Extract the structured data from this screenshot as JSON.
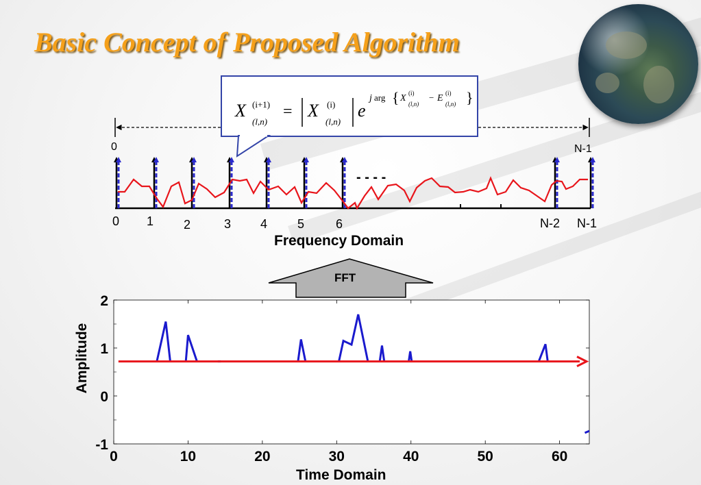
{
  "title": "Basic Concept of Proposed Algorithm",
  "formula": {
    "lhs_sym": "X",
    "lhs_sup": "(i+1)",
    "lhs_sub": "(l,n)",
    "eq": "=",
    "mag_sym": "X",
    "mag_sup": "(i)",
    "mag_sub": "(l,n)",
    "exp_base": "e",
    "exp_j": "j",
    "exp_arg": "arg",
    "exp_x": "X",
    "exp_x_sup": "(i)",
    "exp_x_sub": "(l,n)",
    "exp_minus": "−",
    "exp_e": "E",
    "exp_e_sup": "(i)",
    "exp_e_sub": "(l,n)"
  },
  "frequency": {
    "range_start": "0",
    "range_end": "N-1",
    "ellipsis": "- - - -",
    "axis_labels": [
      "0",
      "1",
      "2",
      "3",
      "4",
      "5",
      "6",
      "N-2",
      "N-1"
    ],
    "domain_label": "Frequency Domain"
  },
  "fft_label": "FFT",
  "colors": {
    "title": "#f5a01a",
    "spectrum": "#e8151b",
    "pilot": "#2a2acc",
    "time_signal": "#1a1acd",
    "threshold": "#e8151b",
    "callout_border": "#3344a8",
    "fft_arrow": "#b3b3b3"
  },
  "chart_data": {
    "type": "line",
    "xlabel": "Time Domain",
    "ylabel": "Amplitude",
    "xlim": [
      0,
      64
    ],
    "ylim": [
      -1,
      2
    ],
    "xticks": [
      0,
      10,
      20,
      30,
      40,
      50,
      60
    ],
    "yticks": [
      -1,
      0,
      1,
      2
    ],
    "x_tick_labels": [
      "0",
      "10",
      "20",
      "30",
      "40",
      "50",
      "60"
    ],
    "y_tick_labels": [
      "-1",
      "0",
      "1",
      "2"
    ],
    "threshold_arrow": {
      "x": [
        1,
        64
      ],
      "y": 0.72
    },
    "signal_segments": [
      {
        "x": [
          5.8,
          7.0,
          7.6
        ],
        "y": [
          0.72,
          1.55,
          0.72
        ]
      },
      {
        "x": [
          9.7,
          10.0,
          11.2
        ],
        "y": [
          0.72,
          1.27,
          0.72
        ]
      },
      {
        "x": [
          14.0,
          14.4
        ],
        "y": [
          0.72,
          0.72
        ]
      },
      {
        "x": [
          24.8,
          25.2,
          25.8
        ],
        "y": [
          0.72,
          1.18,
          0.72
        ]
      },
      {
        "x": [
          30.3,
          30.9,
          32.0,
          32.9,
          34.2
        ],
        "y": [
          0.72,
          1.15,
          1.07,
          1.7,
          0.72
        ]
      },
      {
        "x": [
          35.8,
          36.1,
          36.4
        ],
        "y": [
          0.72,
          1.05,
          0.72
        ]
      },
      {
        "x": [
          39.7,
          39.9,
          40.1
        ],
        "y": [
          0.72,
          0.93,
          0.72
        ]
      },
      {
        "x": [
          57.2,
          58.1,
          58.4
        ],
        "y": [
          0.72,
          1.08,
          0.72
        ]
      },
      {
        "x": [
          63.4,
          64.0
        ],
        "y": [
          -0.77,
          -0.73
        ]
      }
    ]
  }
}
